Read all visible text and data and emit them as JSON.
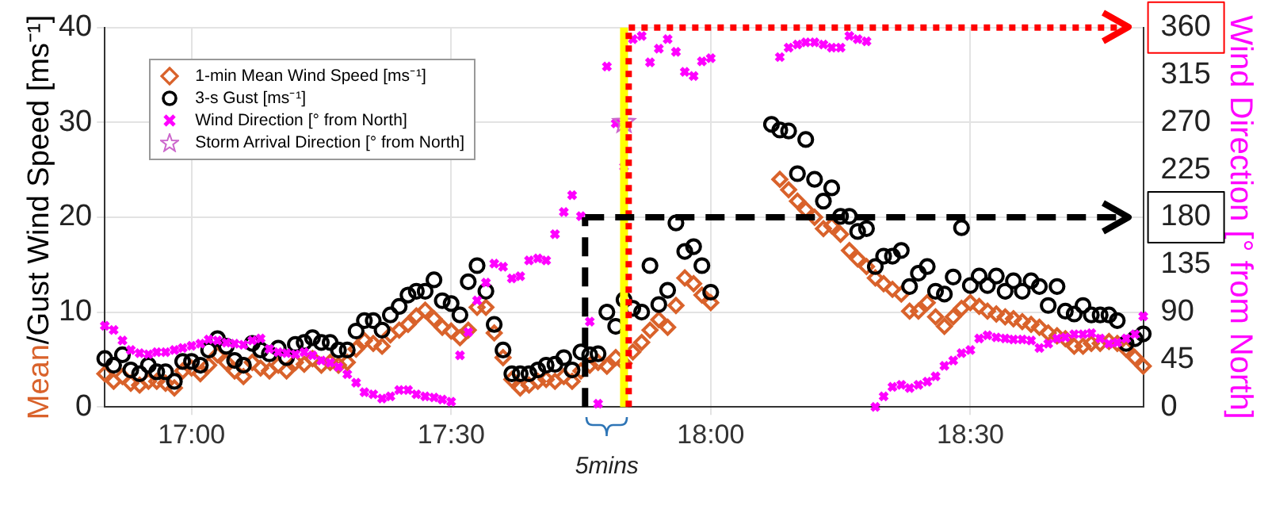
{
  "chart_data": {
    "type": "scatter",
    "ylabel": "Mean/Gust Wind Speed [ms⁻¹]",
    "y2label": "Wind Direction [° from North]",
    "x": [
      16.833,
      16.85,
      16.867,
      16.883,
      16.9,
      16.917,
      16.933,
      16.95,
      16.967,
      16.983,
      17,
      17.017,
      17.033,
      17.05,
      17.067,
      17.083,
      17.1,
      17.117,
      17.133,
      17.15,
      17.167,
      17.183,
      17.2,
      17.217,
      17.233,
      17.25,
      17.267,
      17.283,
      17.3,
      17.317,
      17.333,
      17.35,
      17.367,
      17.383,
      17.4,
      17.417,
      17.433,
      17.45,
      17.467,
      17.483,
      17.5,
      17.517,
      17.533,
      17.55,
      17.567,
      17.583,
      17.6,
      17.617,
      17.633,
      17.65,
      17.667,
      17.683,
      17.7,
      17.717,
      17.733,
      17.75,
      17.767,
      17.783,
      17.8,
      17.817,
      17.833,
      17.85,
      17.867,
      17.883,
      17.9,
      17.917,
      17.933,
      17.95,
      17.967,
      17.983,
      18,
      18.017,
      18.033,
      18.05,
      18.067,
      18.083,
      18.1,
      18.117,
      18.133,
      18.15,
      18.167,
      18.183,
      18.2,
      18.217,
      18.233,
      18.25,
      18.267,
      18.283,
      18.3,
      18.317,
      18.333,
      18.35,
      18.367,
      18.383,
      18.4,
      18.417,
      18.433,
      18.45,
      18.467,
      18.483,
      18.5,
      18.517,
      18.533,
      18.55,
      18.567,
      18.583,
      18.6,
      18.617,
      18.633,
      18.65,
      18.667,
      18.683,
      18.7,
      18.717,
      18.733,
      18.75,
      18.767,
      18.783,
      18.8,
      18.817,
      18.833
    ],
    "series": [
      {
        "name": "1-min Mean Wind Speed [ms⁻¹]",
        "color": "#d9622b",
        "marker": "diamond",
        "values": [
          3.5,
          2.7,
          3.2,
          2.5,
          2.3,
          2.7,
          2.7,
          2.5,
          2.0,
          3.8,
          4.1,
          3.5,
          4.4,
          5.5,
          4.7,
          3.8,
          3.2,
          4.7,
          4.1,
          3.8,
          4.4,
          3.8,
          4.7,
          4.5,
          5.1,
          4.4,
          4.7,
          4.4,
          4.7,
          6.1,
          7.0,
          6.7,
          6.4,
          7.6,
          8.1,
          8.7,
          9.6,
          10.2,
          9.3,
          8.4,
          8.0,
          7.3,
          8.1,
          10.5,
          10.5,
          7.8,
          5.2,
          2.9,
          2.0,
          2.3,
          2.7,
          2.9,
          2.7,
          3.2,
          2.7,
          3.8,
          4.4,
          4.7,
          4.3,
          5.2,
          4.6,
          5.8,
          6.8,
          8.1,
          9.2,
          8.4,
          10.7,
          13.6,
          13.0,
          11.8,
          11.0,
          null,
          null,
          null,
          null,
          null,
          null,
          null,
          24.0,
          22.9,
          21.7,
          20.8,
          20.0,
          18.8,
          19.1,
          18.2,
          16.5,
          15.6,
          14.8,
          13.6,
          13.0,
          12.4,
          11.9,
          10.1,
          10.1,
          11.0,
          9.5,
          8.5,
          9.5,
          10.4,
          11.0,
          10.6,
          10.1,
          9.8,
          9.5,
          9.3,
          9.0,
          8.7,
          8.4,
          7.8,
          7.5,
          7.2,
          6.4,
          6.4,
          6.7,
          6.7,
          6.9,
          6.7,
          6.1,
          5.2,
          4.3
        ]
      },
      {
        "name": "3-s Gust [ms⁻¹]",
        "color": "#000000",
        "marker": "circle",
        "values": [
          5.1,
          4.4,
          5.5,
          3.9,
          3.5,
          4.4,
          3.7,
          3.7,
          2.7,
          4.8,
          4.8,
          4.4,
          6.0,
          7.2,
          6.4,
          4.9,
          4.4,
          6.7,
          6.0,
          5.6,
          6.2,
          5.2,
          6.6,
          6.8,
          7.3,
          6.8,
          6.8,
          6.0,
          6.0,
          8.0,
          9.1,
          9.1,
          8.1,
          9.7,
          10.6,
          11.8,
          12.2,
          12.2,
          13.4,
          11.2,
          10.9,
          9.7,
          13.2,
          14.9,
          12.2,
          8.7,
          6.0,
          3.5,
          3.5,
          3.5,
          3.9,
          4.4,
          4.5,
          5.2,
          3.9,
          5.8,
          5.5,
          5.6,
          10.0,
          8.5,
          11.3,
          10.4,
          10.0,
          14.9,
          10.8,
          12.3,
          19.4,
          16.4,
          16.9,
          14.9,
          12.1,
          null,
          null,
          null,
          null,
          null,
          null,
          29.8,
          29.2,
          29.1,
          24.6,
          28.2,
          24.0,
          21.7,
          23.1,
          20.1,
          20.1,
          18.5,
          18.8,
          14.8,
          15.9,
          15.9,
          16.5,
          12.7,
          14.1,
          14.8,
          12.2,
          11.9,
          13.7,
          18.9,
          12.8,
          13.8,
          12.8,
          13.8,
          12.2,
          13.3,
          12.2,
          13.3,
          12.7,
          10.7,
          12.7,
          10.1,
          9.8,
          10.7,
          9.7,
          9.7,
          9.7,
          9.1,
          6.7,
          7.2,
          7.7
        ]
      },
      {
        "name": "Wind Direction [° from North]",
        "color": "#ff00ff",
        "marker": "cross",
        "axis": "y2",
        "values": [
          77,
          73,
          63,
          54,
          51,
          50,
          52,
          52,
          54,
          56,
          58,
          60,
          64,
          63,
          61,
          60,
          59,
          63,
          65,
          55,
          52,
          51,
          50,
          52,
          49,
          44,
          42,
          38,
          31,
          23,
          14,
          12,
          8,
          10,
          16,
          16,
          12,
          10,
          9,
          7,
          5,
          49,
          71,
          101,
          118,
          136,
          133,
          122,
          124,
          139,
          141,
          139,
          164,
          185,
          201,
          181,
          81,
          3,
          323,
          269,
          228,
          349,
          352,
          327,
          340,
          349,
          337,
          318,
          314,
          328,
          331,
          null,
          null,
          null,
          null,
          null,
          null,
          null,
          332,
          341,
          344,
          346,
          346,
          344,
          341,
          341,
          352,
          349,
          347,
          0,
          10,
          19,
          21,
          18,
          21,
          24,
          29,
          39,
          44,
          51,
          54,
          65,
          68,
          66,
          65,
          64,
          64,
          63,
          56,
          60,
          65,
          66,
          69,
          69,
          70,
          65,
          60,
          61,
          65,
          69,
          86
        ]
      },
      {
        "name": "Storm Arrival Direction [° from North]",
        "color": "#cc66cc",
        "marker": "star",
        "axis": "y2",
        "x": [
          17.833
        ],
        "values": [
          270
        ]
      }
    ],
    "xlim": [
      16.833,
      18.833
    ],
    "xticks": [
      {
        "value": 17,
        "label": "17:00"
      },
      {
        "value": 17.5,
        "label": "17:30"
      },
      {
        "value": 18,
        "label": "18:00"
      },
      {
        "value": 18.5,
        "label": "18:30"
      }
    ],
    "ylim": [
      0,
      40
    ],
    "yticks": [
      0,
      10,
      20,
      30,
      40
    ],
    "y2lim": [
      0,
      360
    ],
    "y2ticks": [
      0,
      45,
      90,
      135,
      180,
      225,
      270,
      315,
      360
    ],
    "ref_lines": [
      {
        "axis": "x",
        "value": 17.833,
        "color": "#ffff00",
        "line_style": "solid"
      },
      {
        "axis": "x",
        "value": 17.842,
        "color": "#ff0000",
        "line_style": "dotted"
      },
      {
        "axis": "y2",
        "value": 360,
        "color": "#ff0000",
        "line_style": "dotted"
      },
      {
        "axis": "x",
        "value": 17.758,
        "color": "#000000",
        "line_style": "dashed"
      },
      {
        "axis": "y2",
        "value": 180,
        "color": "#000000",
        "line_style": "dashed"
      }
    ],
    "annotations": [
      "5mins"
    ],
    "grid": true,
    "legend": "top left"
  }
}
